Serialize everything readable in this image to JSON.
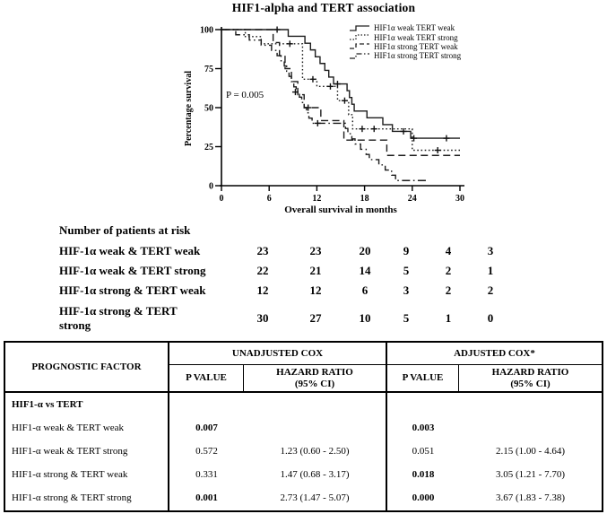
{
  "chart_data": {
    "type": "line",
    "subtype": "kaplan_meier_step",
    "title": "HIF1-alpha and TERT association",
    "xlabel": "Overall survival in months",
    "ylabel": "Percentage survival",
    "annotation": "P = 0.005",
    "xlim": [
      0,
      30
    ],
    "ylim": [
      0,
      100
    ],
    "x_ticks": [
      0,
      6,
      12,
      18,
      24,
      30
    ],
    "y_ticks": [
      0,
      25,
      50,
      75,
      100
    ],
    "grid": false,
    "legend_position": "top-right",
    "series": [
      {
        "name": "HIF1α weak TERT weak",
        "line_style": "solid",
        "start": 100,
        "end_t": 30,
        "events": [
          [
            8.4,
            95.7
          ],
          [
            10.5,
            91.3
          ],
          [
            11.2,
            87.0
          ],
          [
            11.8,
            82.6
          ],
          [
            12.4,
            78.3
          ],
          [
            13.0,
            73.9
          ],
          [
            13.5,
            69.6
          ],
          [
            14.1,
            65.2
          ],
          [
            15.8,
            60.9
          ],
          [
            16.1,
            56.5
          ],
          [
            16.4,
            52.2
          ],
          [
            16.7,
            47.8
          ],
          [
            18.3,
            43.5
          ],
          [
            20.3,
            39.1
          ],
          [
            21.5,
            34.8
          ],
          [
            23.8,
            30.4
          ]
        ],
        "censors": [
          [
            7.0,
            100
          ],
          [
            14.6,
            65.2
          ],
          [
            22.9,
            34.8
          ],
          [
            24.2,
            30.4
          ],
          [
            28.3,
            30.4
          ]
        ]
      },
      {
        "name": "HIF1α weak TERT strong",
        "line_style": "dotted",
        "start": 100,
        "end_t": 30,
        "events": [
          [
            3.0,
            95.5
          ],
          [
            5.0,
            90.9
          ],
          [
            10.2,
            68.2
          ],
          [
            12.0,
            63.6
          ],
          [
            14.6,
            54.5
          ],
          [
            16.0,
            45.5
          ],
          [
            16.5,
            36.4
          ],
          [
            24.0,
            22.7
          ]
        ],
        "censors": [
          [
            8.6,
            90.9
          ],
          [
            11.5,
            68.2
          ],
          [
            13.7,
            63.6
          ],
          [
            15.5,
            54.5
          ],
          [
            17.7,
            36.4
          ],
          [
            19.2,
            36.4
          ],
          [
            27.2,
            22.7
          ]
        ]
      },
      {
        "name": "HIF1α strong TERT weak",
        "line_style": "dashed",
        "start": 100,
        "end_t": 30,
        "events": [
          [
            6.5,
            91.7
          ],
          [
            7.3,
            83.3
          ],
          [
            8.0,
            75.0
          ],
          [
            8.8,
            66.7
          ],
          [
            9.6,
            58.3
          ],
          [
            10.4,
            50.0
          ],
          [
            12.5,
            41.7
          ],
          [
            15.4,
            29.2
          ],
          [
            20.8,
            19.4
          ]
        ],
        "censors": [
          [
            10.9,
            50.0
          ]
        ]
      },
      {
        "name": "HIF1α strong TERT strong",
        "line_style": "dashdot",
        "start": 100,
        "end_t": 26,
        "events": [
          [
            1.8,
            96.7
          ],
          [
            3.5,
            93.3
          ],
          [
            5.0,
            90.0
          ],
          [
            6.3,
            86.7
          ],
          [
            7.0,
            83.3
          ],
          [
            7.5,
            80.0
          ],
          [
            7.9,
            76.7
          ],
          [
            8.2,
            73.3
          ],
          [
            8.5,
            70.0
          ],
          [
            8.8,
            66.7
          ],
          [
            9.1,
            63.3
          ],
          [
            9.4,
            60.0
          ],
          [
            9.8,
            56.7
          ],
          [
            10.1,
            53.3
          ],
          [
            10.4,
            50.0
          ],
          [
            10.7,
            46.7
          ],
          [
            11.0,
            43.3
          ],
          [
            11.4,
            40.0
          ],
          [
            15.6,
            36.7
          ],
          [
            15.9,
            33.3
          ],
          [
            16.4,
            30.0
          ],
          [
            16.8,
            26.7
          ],
          [
            17.5,
            23.3
          ],
          [
            18.2,
            20.0
          ],
          [
            18.6,
            16.7
          ],
          [
            19.8,
            13.3
          ],
          [
            20.6,
            10.0
          ],
          [
            21.4,
            6.7
          ],
          [
            21.9,
            3.3
          ]
        ],
        "censors": [
          [
            9.3,
            60.0
          ],
          [
            12.1,
            40.0
          ]
        ]
      }
    ]
  },
  "risk_table": {
    "title": "Number of patients at risk",
    "rows": [
      {
        "lines": [
          "HIF-1α weak & TERT weak"
        ],
        "counts": [
          "23",
          "23",
          "20",
          "9",
          "4",
          "3"
        ]
      },
      {
        "lines": [
          "HIF-1α weak & TERT strong"
        ],
        "counts": [
          "22",
          "21",
          "14",
          "5",
          "2",
          "1"
        ]
      },
      {
        "lines": [
          "HIF-1α strong & TERT weak"
        ],
        "counts": [
          "12",
          "12",
          "6",
          "3",
          "2",
          "2"
        ]
      },
      {
        "lines": [
          "HIF-1α strong & TERT",
          "strong"
        ],
        "counts": [
          "30",
          "27",
          "10",
          "5",
          "1",
          "0"
        ]
      }
    ]
  },
  "cox_table": {
    "headers": {
      "factor": "PROGNOSTIC FACTOR",
      "unadjusted": "UNADJUSTED COX",
      "adjusted": "ADJUSTED COX*",
      "p_value": "P VALUE",
      "hazard_ratio": "HAZARD RATIO",
      "ci": "(95% CI)"
    },
    "section": "HIF1-α vs TERT",
    "rows": [
      {
        "factor": "HIF1-α weak & TERT weak",
        "p_unadj": "0.007",
        "p_unadj_bold": true,
        "hr_unadj": "",
        "p_adj": "0.003",
        "p_adj_bold": true,
        "hr_adj": ""
      },
      {
        "factor": "HIF1-α weak & TERT strong",
        "p_unadj": "0.572",
        "p_unadj_bold": false,
        "hr_unadj": "1.23 (0.60 - 2.50)",
        "p_adj": "0.051",
        "p_adj_bold": false,
        "hr_adj": "2.15 (1.00 - 4.64)"
      },
      {
        "factor": "HIF1-α strong & TERT weak",
        "p_unadj": "0.331",
        "p_unadj_bold": false,
        "hr_unadj": "1.47 (0.68 - 3.17)",
        "p_adj": "0.018",
        "p_adj_bold": true,
        "hr_adj": "3.05 (1.21 - 7.70)"
      },
      {
        "factor": "HIF1-α strong & TERT strong",
        "p_unadj": "0.001",
        "p_unadj_bold": true,
        "hr_unadj": "2.73 (1.47 - 5.07)",
        "p_adj": "0.000",
        "p_adj_bold": true,
        "hr_adj": "3.67 (1.83 - 7.38)"
      }
    ]
  }
}
